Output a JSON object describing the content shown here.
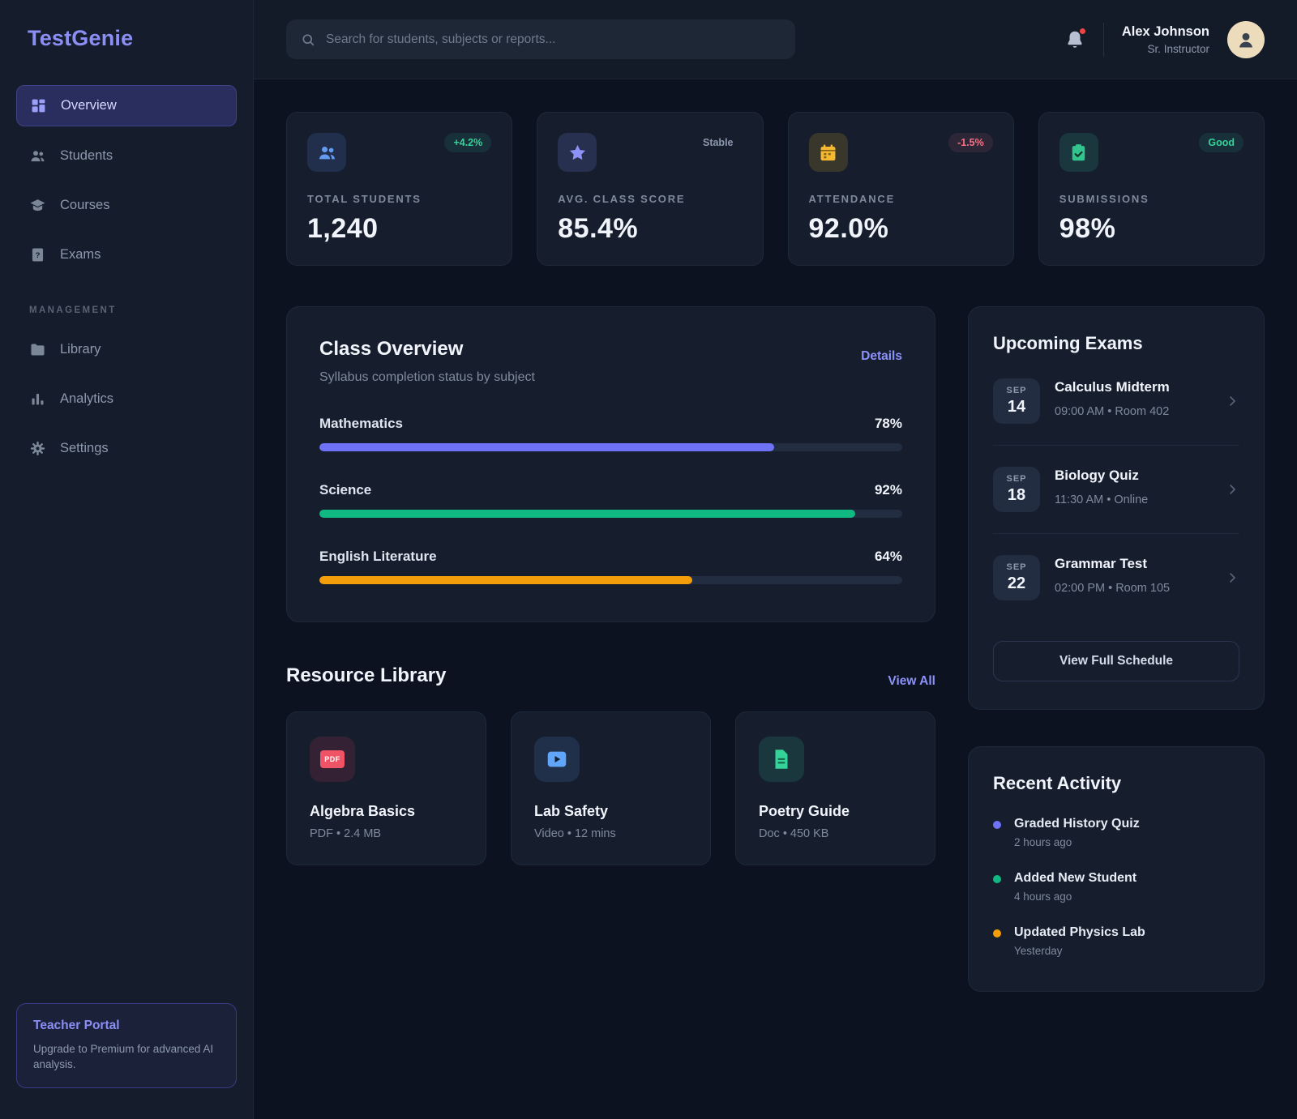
{
  "app": {
    "name": "TestGenie"
  },
  "sidebar": {
    "nav": [
      {
        "label": "Overview"
      },
      {
        "label": "Students"
      },
      {
        "label": "Courses"
      },
      {
        "label": "Exams"
      }
    ],
    "section_label": "MANAGEMENT",
    "management": [
      {
        "label": "Library"
      },
      {
        "label": "Analytics"
      },
      {
        "label": "Settings"
      }
    ],
    "promo": {
      "title": "Teacher Portal",
      "body": "Upgrade to Premium for advanced AI analysis."
    }
  },
  "topbar": {
    "search_placeholder": "Search for students, subjects or reports...",
    "user": {
      "name": "Alex Johnson",
      "role": "Sr. Instructor"
    }
  },
  "stats": [
    {
      "label": "TOTAL STUDENTS",
      "value": "1,240",
      "badge": "+4.2%"
    },
    {
      "label": "AVG. CLASS SCORE",
      "value": "85.4%",
      "badge": "Stable"
    },
    {
      "label": "ATTENDANCE",
      "value": "92.0%",
      "badge": "-1.5%"
    },
    {
      "label": "SUBMISSIONS",
      "value": "98%",
      "badge": "Good"
    }
  ],
  "class_overview": {
    "title": "Class Overview",
    "subtitle": "Syllabus completion status by subject",
    "details_label": "Details",
    "subjects": [
      {
        "name": "Mathematics",
        "percent_label": "78%",
        "value": 78,
        "color": "#6d72f6"
      },
      {
        "name": "Science",
        "percent_label": "92%",
        "value": 92,
        "color": "#10b981"
      },
      {
        "name": "English Literature",
        "percent_label": "64%",
        "value": 64,
        "color": "#f59e0b"
      }
    ]
  },
  "upcoming_exams": {
    "title": "Upcoming Exams",
    "items": [
      {
        "month": "SEP",
        "day": "14",
        "name": "Calculus Midterm",
        "meta": "09:00 AM • Room 402"
      },
      {
        "month": "SEP",
        "day": "18",
        "name": "Biology Quiz",
        "meta": "11:30 AM • Online"
      },
      {
        "month": "SEP",
        "day": "22",
        "name": "Grammar Test",
        "meta": "02:00 PM • Room 105"
      }
    ],
    "button_label": "View Full Schedule"
  },
  "resource_library": {
    "title": "Resource Library",
    "view_all_label": "View All",
    "items": [
      {
        "name": "Algebra Basics",
        "meta": "PDF • 2.4 MB",
        "icon_label": "PDF"
      },
      {
        "name": "Lab Safety",
        "meta": "Video • 12 mins"
      },
      {
        "name": "Poetry Guide",
        "meta": "Doc • 450 KB"
      }
    ]
  },
  "recent_activity": {
    "title": "Recent Activity",
    "items": [
      {
        "name": "Graded History Quiz",
        "time": "2 hours ago",
        "color": "#6d72f6"
      },
      {
        "name": "Added New Student",
        "time": "4 hours ago",
        "color": "#10b981"
      },
      {
        "name": "Updated Physics Lab",
        "time": "Yesterday",
        "color": "#f59e0b"
      }
    ]
  },
  "colors": {
    "accent": "#818cf8",
    "positive": "#34d399",
    "negative": "#fb7185",
    "warning": "#fbbf24"
  }
}
